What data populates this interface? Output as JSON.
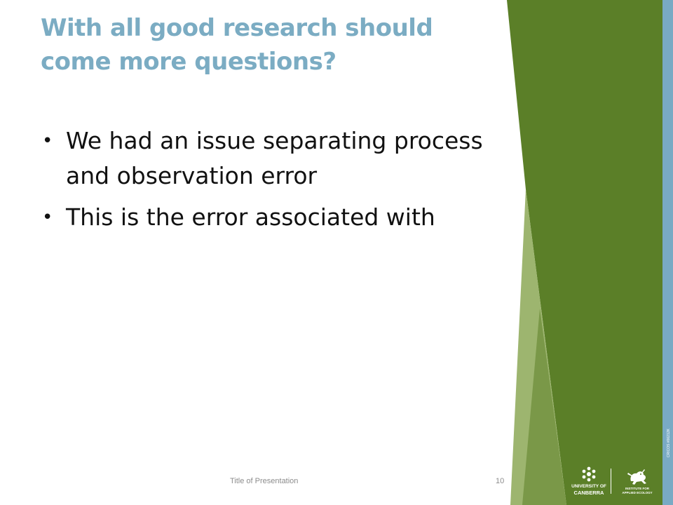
{
  "slide": {
    "title": "With all good research should come more questions?",
    "bullets": [
      "We had an issue separating process and observation error",
      "This is the error associated with"
    ],
    "footer_title": "Title of Presentation",
    "page_number": "10"
  },
  "branding": {
    "university_line1": "UNIVERSITY OF",
    "university_line2": "CANBERRA",
    "institute_line1": "INSTITUTE FOR",
    "institute_line2": "APPLIED ECOLOGY",
    "cricos": "CRICOS #00212K",
    "university_icon": "snowflake-crest-icon",
    "institute_icon": "frog-icon"
  },
  "colors": {
    "title": "#7bacc3",
    "green_dark": "#5b7f28",
    "green_light": "#9db56f",
    "blue_strip": "#79aac4"
  }
}
